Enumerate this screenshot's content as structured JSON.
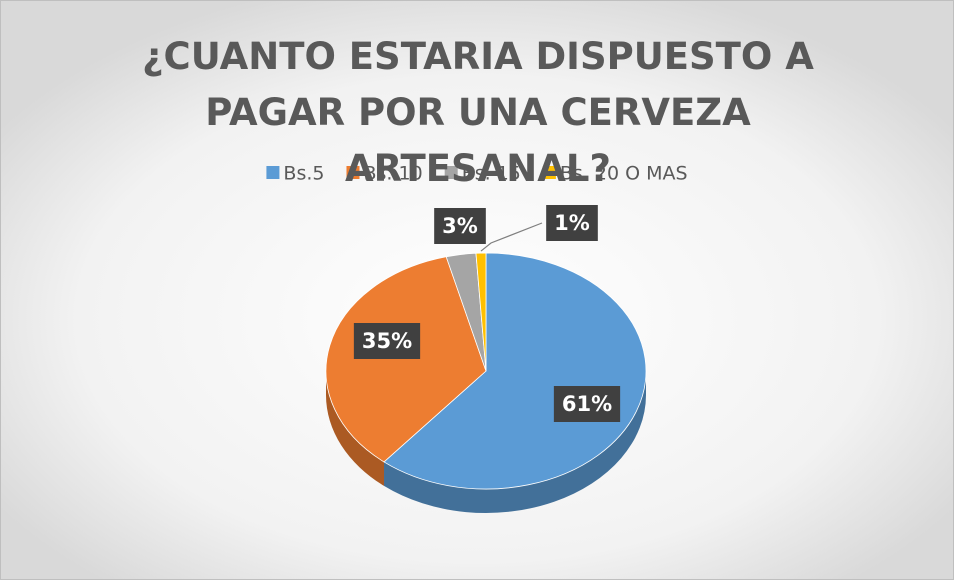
{
  "chart_data": {
    "type": "pie",
    "title": "¿CUANTO ESTARIA DISPUESTO A PAGAR POR UNA CERVEZA ARTESANAL?",
    "categories": [
      "Bs.5",
      "Bs. 10",
      "Bs. 15",
      "Bs. 20 O MAS"
    ],
    "values": [
      61,
      35,
      3,
      1
    ],
    "value_labels": [
      "61%",
      "35%",
      "3%",
      "1%"
    ],
    "colors": [
      "#5b9bd5",
      "#ed7d31",
      "#a5a5a5",
      "#ffc000"
    ],
    "legend": "top"
  }
}
